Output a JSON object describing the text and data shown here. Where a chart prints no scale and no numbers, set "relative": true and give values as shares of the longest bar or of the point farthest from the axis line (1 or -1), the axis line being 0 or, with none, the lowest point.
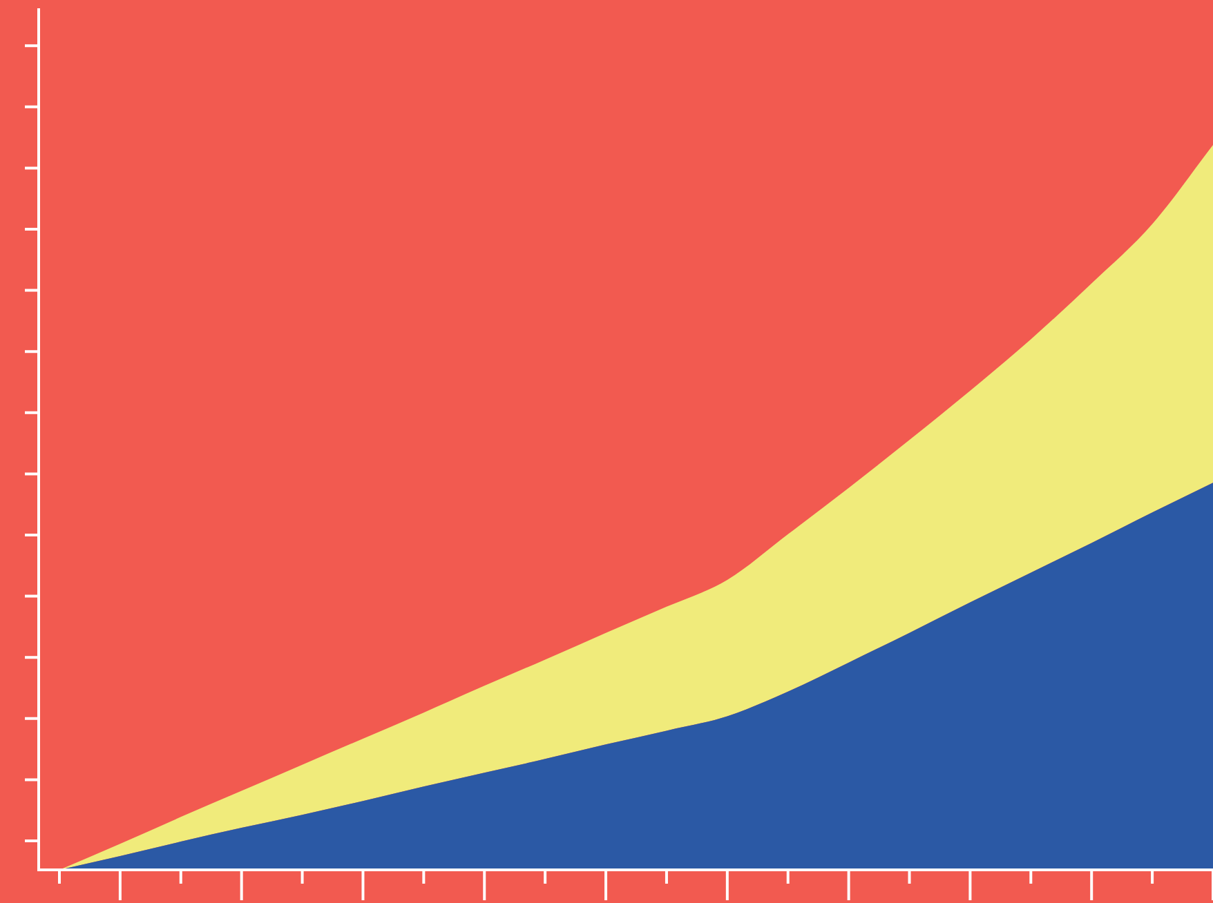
{
  "chart_data": {
    "type": "area",
    "relative": true,
    "stacked": true,
    "categories": [
      null,
      null,
      null,
      null,
      null,
      null,
      null,
      null,
      null,
      null,
      null,
      null,
      null,
      null,
      null,
      null,
      null,
      null,
      null,
      null
    ],
    "series": [
      {
        "color": "#2b59a5",
        "values": [
          0,
          0.019,
          0.039,
          0.058,
          0.076,
          0.095,
          0.115,
          0.134,
          0.153,
          0.173,
          0.192,
          0.212,
          0.246,
          0.286,
          0.327,
          0.369,
          0.41,
          0.451,
          0.493,
          0.534
        ]
      },
      {
        "color": "#f0eb7b",
        "values": [
          0,
          0.017,
          0.034,
          0.051,
          0.069,
          0.086,
          0.102,
          0.12,
          0.137,
          0.154,
          0.171,
          0.188,
          0.217,
          0.241,
          0.266,
          0.292,
          0.322,
          0.358,
          0.398,
          0.466
        ]
      }
    ],
    "legend": false
  }
}
